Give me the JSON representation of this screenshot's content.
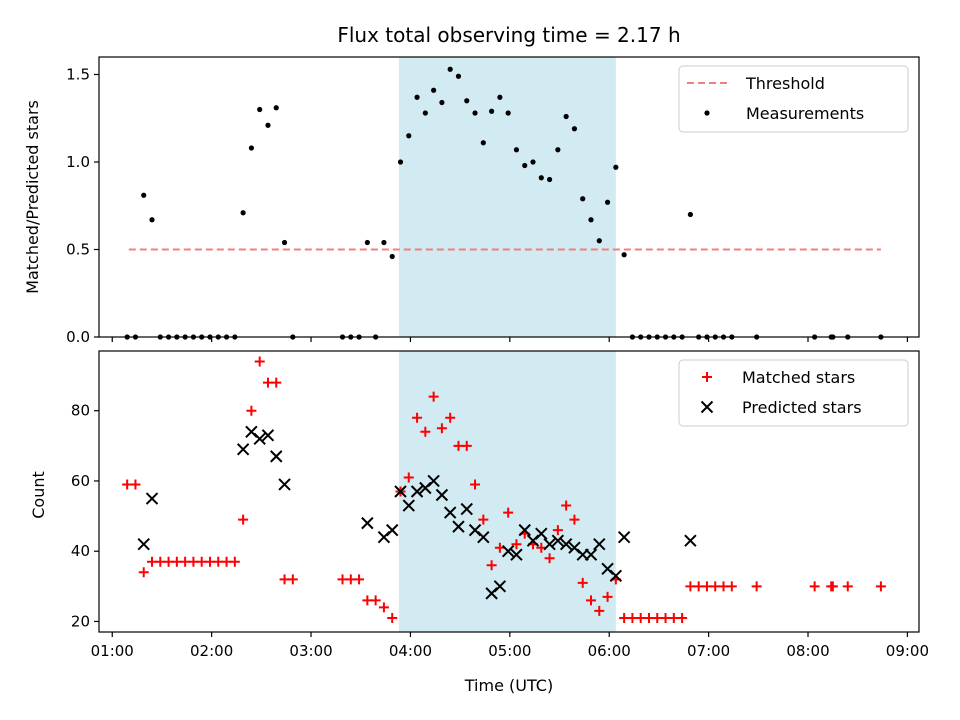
{
  "chart_data": {
    "type": "scatter",
    "title": "Flux total observing time = 2.17 h",
    "xlabel": "Time (UTC)",
    "x_ticks": [
      "01:00",
      "02:00",
      "03:00",
      "04:00",
      "05:00",
      "06:00",
      "07:00",
      "08:00",
      "09:00"
    ],
    "xlim": [
      "00:52",
      "09:07"
    ],
    "shaded_interval": [
      "03:53",
      "06:04"
    ],
    "shaded_color": "#add8e6",
    "panels": [
      {
        "id": "ratio",
        "ylabel": "Matched/Predicted stars",
        "ylim": [
          0,
          1.6
        ],
        "y_ticks": [
          0.0,
          0.5,
          1.0,
          1.5
        ],
        "legend_position": "upper right",
        "lines": [
          {
            "name": "Threshold",
            "color": "#f08080",
            "style": "dashed",
            "x": [
              "01:10",
              "08:44"
            ],
            "y": [
              0.5,
              0.5
            ]
          }
        ],
        "series": [
          {
            "name": "Measurements",
            "marker": "dot",
            "color": "#000000",
            "points": [
              [
                "01:09",
                0
              ],
              [
                "01:14",
                0
              ],
              [
                "01:19",
                0.81
              ],
              [
                "01:24",
                0.67
              ],
              [
                "01:29",
                0
              ],
              [
                "01:34",
                0
              ],
              [
                "01:39",
                0
              ],
              [
                "01:44",
                0
              ],
              [
                "01:49",
                0
              ],
              [
                "01:54",
                0
              ],
              [
                "01:59",
                0
              ],
              [
                "02:04",
                0
              ],
              [
                "02:09",
                0
              ],
              [
                "02:14",
                0
              ],
              [
                "02:19",
                0.71
              ],
              [
                "02:24",
                1.08
              ],
              [
                "02:29",
                1.3
              ],
              [
                "02:34",
                1.21
              ],
              [
                "02:39",
                1.31
              ],
              [
                "02:44",
                0.54
              ],
              [
                "02:49",
                0
              ],
              [
                "03:19",
                0
              ],
              [
                "03:24",
                0
              ],
              [
                "03:29",
                0
              ],
              [
                "03:34",
                0.54
              ],
              [
                "03:39",
                0
              ],
              [
                "03:44",
                0.54
              ],
              [
                "03:49",
                0.46
              ],
              [
                "03:54",
                1.0
              ],
              [
                "03:59",
                1.15
              ],
              [
                "04:04",
                1.37
              ],
              [
                "04:09",
                1.28
              ],
              [
                "04:14",
                1.41
              ],
              [
                "04:19",
                1.34
              ],
              [
                "04:24",
                1.53
              ],
              [
                "04:29",
                1.49
              ],
              [
                "04:34",
                1.35
              ],
              [
                "04:39",
                1.28
              ],
              [
                "04:44",
                1.11
              ],
              [
                "04:49",
                1.29
              ],
              [
                "04:54",
                1.37
              ],
              [
                "04:59",
                1.28
              ],
              [
                "05:04",
                1.07
              ],
              [
                "05:09",
                0.98
              ],
              [
                "05:14",
                1.0
              ],
              [
                "05:19",
                0.91
              ],
              [
                "05:24",
                0.9
              ],
              [
                "05:29",
                1.07
              ],
              [
                "05:34",
                1.26
              ],
              [
                "05:39",
                1.19
              ],
              [
                "05:44",
                0.79
              ],
              [
                "05:49",
                0.67
              ],
              [
                "05:54",
                0.55
              ],
              [
                "05:59",
                0.77
              ],
              [
                "06:04",
                0.97
              ],
              [
                "06:09",
                0.47
              ],
              [
                "06:14",
                0
              ],
              [
                "06:19",
                0
              ],
              [
                "06:24",
                0
              ],
              [
                "06:29",
                0
              ],
              [
                "06:34",
                0
              ],
              [
                "06:39",
                0
              ],
              [
                "06:44",
                0
              ],
              [
                "06:49",
                0.7
              ],
              [
                "06:54",
                0
              ],
              [
                "06:59",
                0
              ],
              [
                "07:04",
                0
              ],
              [
                "07:09",
                0
              ],
              [
                "07:14",
                0
              ],
              [
                "07:29",
                0
              ],
              [
                "08:04",
                0
              ],
              [
                "08:14",
                0
              ],
              [
                "08:15",
                0
              ],
              [
                "08:24",
                0
              ],
              [
                "08:44",
                0
              ]
            ]
          }
        ]
      },
      {
        "id": "counts",
        "ylabel": "Count",
        "ylim": [
          17,
          97
        ],
        "y_ticks": [
          20,
          40,
          60,
          80
        ],
        "legend_position": "upper right",
        "series": [
          {
            "name": "Matched stars",
            "marker": "plus",
            "color": "#ff0000",
            "points": [
              [
                "01:09",
                59
              ],
              [
                "01:14",
                59
              ],
              [
                "01:19",
                34
              ],
              [
                "01:24",
                37
              ],
              [
                "01:29",
                37
              ],
              [
                "01:34",
                37
              ],
              [
                "01:39",
                37
              ],
              [
                "01:44",
                37
              ],
              [
                "01:49",
                37
              ],
              [
                "01:54",
                37
              ],
              [
                "01:59",
                37
              ],
              [
                "02:04",
                37
              ],
              [
                "02:09",
                37
              ],
              [
                "02:14",
                37
              ],
              [
                "02:19",
                49
              ],
              [
                "02:24",
                80
              ],
              [
                "02:29",
                94
              ],
              [
                "02:34",
                88
              ],
              [
                "02:39",
                88
              ],
              [
                "02:44",
                32
              ],
              [
                "02:49",
                32
              ],
              [
                "03:19",
                32
              ],
              [
                "03:24",
                32
              ],
              [
                "03:29",
                32
              ],
              [
                "03:34",
                26
              ],
              [
                "03:39",
                26
              ],
              [
                "03:44",
                24
              ],
              [
                "03:49",
                21
              ],
              [
                "03:54",
                57
              ],
              [
                "03:59",
                61
              ],
              [
                "04:04",
                78
              ],
              [
                "04:09",
                74
              ],
              [
                "04:14",
                84
              ],
              [
                "04:19",
                75
              ],
              [
                "04:24",
                78
              ],
              [
                "04:29",
                70
              ],
              [
                "04:34",
                70
              ],
              [
                "04:39",
                59
              ],
              [
                "04:44",
                49
              ],
              [
                "04:49",
                36
              ],
              [
                "04:54",
                41
              ],
              [
                "04:59",
                51
              ],
              [
                "05:04",
                42
              ],
              [
                "05:09",
                45
              ],
              [
                "05:14",
                42
              ],
              [
                "05:19",
                41
              ],
              [
                "05:24",
                38
              ],
              [
                "05:29",
                46
              ],
              [
                "05:34",
                53
              ],
              [
                "05:39",
                49
              ],
              [
                "05:44",
                31
              ],
              [
                "05:49",
                26
              ],
              [
                "05:54",
                23
              ],
              [
                "05:59",
                27
              ],
              [
                "06:04",
                32
              ],
              [
                "06:09",
                21
              ],
              [
                "06:14",
                21
              ],
              [
                "06:19",
                21
              ],
              [
                "06:24",
                21
              ],
              [
                "06:29",
                21
              ],
              [
                "06:34",
                21
              ],
              [
                "06:39",
                21
              ],
              [
                "06:44",
                21
              ],
              [
                "06:49",
                30
              ],
              [
                "06:54",
                30
              ],
              [
                "06:59",
                30
              ],
              [
                "07:04",
                30
              ],
              [
                "07:09",
                30
              ],
              [
                "07:14",
                30
              ],
              [
                "07:29",
                30
              ],
              [
                "08:04",
                30
              ],
              [
                "08:14",
                30
              ],
              [
                "08:15",
                30
              ],
              [
                "08:24",
                30
              ],
              [
                "08:44",
                30
              ]
            ]
          },
          {
            "name": "Predicted stars",
            "marker": "x",
            "color": "#000000",
            "points": [
              [
                "01:19",
                42
              ],
              [
                "01:24",
                55
              ],
              [
                "02:19",
                69
              ],
              [
                "02:24",
                74
              ],
              [
                "02:29",
                72
              ],
              [
                "02:34",
                73
              ],
              [
                "02:39",
                67
              ],
              [
                "02:44",
                59
              ],
              [
                "03:34",
                48
              ],
              [
                "03:44",
                44
              ],
              [
                "03:49",
                46
              ],
              [
                "03:54",
                57
              ],
              [
                "03:59",
                53
              ],
              [
                "04:04",
                57
              ],
              [
                "04:09",
                58
              ],
              [
                "04:14",
                60
              ],
              [
                "04:19",
                56
              ],
              [
                "04:24",
                51
              ],
              [
                "04:29",
                47
              ],
              [
                "04:34",
                52
              ],
              [
                "04:39",
                46
              ],
              [
                "04:44",
                44
              ],
              [
                "04:49",
                28
              ],
              [
                "04:54",
                30
              ],
              [
                "04:59",
                40
              ],
              [
                "05:04",
                39
              ],
              [
                "05:09",
                46
              ],
              [
                "05:14",
                43
              ],
              [
                "05:19",
                45
              ],
              [
                "05:24",
                42
              ],
              [
                "05:29",
                43
              ],
              [
                "05:34",
                42
              ],
              [
                "05:39",
                41
              ],
              [
                "05:44",
                39
              ],
              [
                "05:49",
                39
              ],
              [
                "05:54",
                42
              ],
              [
                "05:59",
                35
              ],
              [
                "06:04",
                33
              ],
              [
                "06:09",
                44
              ],
              [
                "06:49",
                43
              ]
            ]
          }
        ]
      }
    ]
  }
}
